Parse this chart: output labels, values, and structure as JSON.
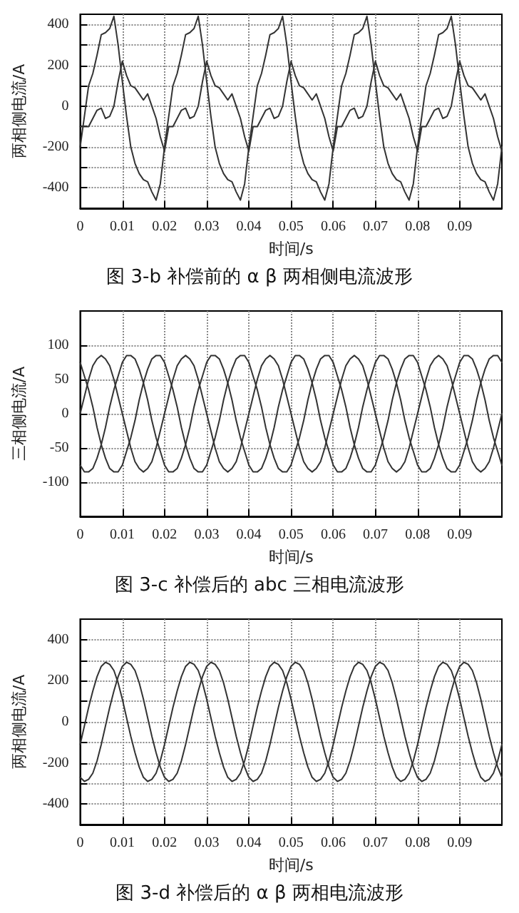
{
  "chart_data": [
    {
      "type": "line",
      "title": "图 3-b 补偿前的 α β 两相侧电流波形",
      "xlabel": "时间/s",
      "ylabel": "两相侧电流/A",
      "x": [
        0,
        0.001,
        0.002,
        0.003,
        0.004,
        0.005,
        0.006,
        0.007,
        0.008,
        0.009,
        0.01,
        0.011,
        0.012,
        0.013,
        0.014,
        0.015,
        0.016,
        0.017,
        0.018,
        0.019,
        0.02,
        0.021,
        0.022,
        0.023,
        0.024,
        0.025,
        0.026,
        0.027,
        0.028,
        0.029,
        0.03,
        0.031,
        0.032,
        0.033,
        0.034,
        0.035,
        0.036,
        0.037,
        0.038,
        0.039,
        0.04,
        0.041,
        0.042,
        0.043,
        0.044,
        0.045,
        0.046,
        0.047,
        0.048,
        0.049,
        0.05,
        0.051,
        0.052,
        0.053,
        0.054,
        0.055,
        0.056,
        0.057,
        0.058,
        0.059,
        0.06,
        0.061,
        0.062,
        0.063,
        0.064,
        0.065,
        0.066,
        0.067,
        0.068,
        0.069,
        0.07,
        0.071,
        0.072,
        0.073,
        0.074,
        0.075,
        0.076,
        0.077,
        0.078,
        0.079,
        0.08,
        0.081,
        0.082,
        0.083,
        0.084,
        0.085,
        0.086,
        0.087,
        0.088,
        0.089,
        0.09,
        0.091,
        0.092,
        0.093,
        0.094,
        0.095,
        0.096,
        0.097,
        0.098,
        0.099,
        0.1
      ],
      "series": [
        {
          "color": "#333333",
          "values": [
            -200,
            -50,
            100,
            160,
            250,
            350,
            360,
            380,
            440,
            300,
            120,
            -50,
            -200,
            -280,
            -330,
            -360,
            -370,
            -420,
            -460,
            -380,
            -200,
            -50,
            100,
            160,
            250,
            350,
            360,
            380,
            440,
            300,
            120,
            -50,
            -200,
            -280,
            -330,
            -360,
            -370,
            -420,
            -460,
            -380,
            -200,
            -50,
            100,
            160,
            250,
            350,
            360,
            380,
            440,
            300,
            120,
            -50,
            -200,
            -280,
            -330,
            -360,
            -370,
            -420,
            -460,
            -380,
            -200,
            -50,
            100,
            160,
            250,
            350,
            360,
            380,
            440,
            300,
            120,
            -50,
            -200,
            -280,
            -330,
            -360,
            -370,
            -420,
            -460,
            -380,
            -200,
            -50,
            100,
            160,
            250,
            350,
            360,
            380,
            440,
            300,
            120,
            -50,
            -200,
            -280,
            -330,
            -360,
            -370,
            -420,
            -460,
            -380,
            -200
          ]
        },
        {
          "color": "#333333",
          "values": [
            -100,
            -100,
            -100,
            -60,
            -20,
            -10,
            -60,
            -50,
            0,
            120,
            220,
            150,
            100,
            90,
            60,
            30,
            60,
            0,
            -60,
            -150,
            -220,
            -100,
            -100,
            -60,
            -20,
            -10,
            -60,
            -50,
            0,
            120,
            220,
            150,
            100,
            90,
            60,
            30,
            60,
            0,
            -60,
            -150,
            -220,
            -100,
            -100,
            -60,
            -20,
            -10,
            -60,
            -50,
            0,
            120,
            220,
            150,
            100,
            90,
            60,
            30,
            60,
            0,
            -60,
            -150,
            -220,
            -100,
            -100,
            -60,
            -20,
            -10,
            -60,
            -50,
            0,
            120,
            220,
            150,
            100,
            90,
            60,
            30,
            60,
            0,
            -60,
            -150,
            -220,
            -100,
            -100,
            -60,
            -20,
            -10,
            -60,
            -50,
            0,
            120,
            220,
            150,
            100,
            90,
            60,
            30,
            60,
            0,
            -60,
            -150,
            -220
          ]
        }
      ],
      "xlim": [
        0,
        0.1
      ],
      "xticks": [
        0,
        0.01,
        0.02,
        0.03,
        0.04,
        0.05,
        0.06,
        0.07,
        0.08,
        0.09
      ],
      "ylim": [
        -500,
        450
      ],
      "yticks": [
        -400,
        {
          "value": -300,
          "label": null
        },
        -200,
        {
          "value": -100,
          "label": null
        },
        0,
        {
          "value": 100,
          "label": null
        },
        200,
        {
          "value": 300,
          "label": null
        },
        400
      ],
      "grid": true,
      "marker": "none",
      "line_style": "solid"
    },
    {
      "type": "line",
      "title": "图 3-c 补偿后的 abc 三相电流波形",
      "xlabel": "时间/s",
      "ylabel": "三相侧电流/A",
      "x": [
        0,
        0.001,
        0.002,
        0.003,
        0.004,
        0.005,
        0.006,
        0.007,
        0.008,
        0.009,
        0.01,
        0.011,
        0.012,
        0.013,
        0.014,
        0.015,
        0.016,
        0.017,
        0.018,
        0.019,
        0.02,
        0.021,
        0.022,
        0.023,
        0.024,
        0.025,
        0.026,
        0.027,
        0.028,
        0.029,
        0.03,
        0.031,
        0.032,
        0.033,
        0.034,
        0.035,
        0.036,
        0.037,
        0.038,
        0.039,
        0.04,
        0.041,
        0.042,
        0.043,
        0.044,
        0.045,
        0.046,
        0.047,
        0.048,
        0.049,
        0.05,
        0.051,
        0.052,
        0.053,
        0.054,
        0.055,
        0.056,
        0.057,
        0.058,
        0.059,
        0.06,
        0.061,
        0.062,
        0.063,
        0.064,
        0.065,
        0.066,
        0.067,
        0.068,
        0.069,
        0.07,
        0.071,
        0.072,
        0.073,
        0.074,
        0.075,
        0.076,
        0.077,
        0.078,
        0.079,
        0.08,
        0.081,
        0.082,
        0.083,
        0.084,
        0.085,
        0.086,
        0.087,
        0.088,
        0.089,
        0.09,
        0.091,
        0.092,
        0.093,
        0.094,
        0.095,
        0.096,
        0.097,
        0.098,
        0.099,
        0.1
      ],
      "series": [
        {
          "color": "#333333",
          "values": [
            0,
            25,
            50,
            70,
            80,
            85,
            80,
            70,
            50,
            25,
            0,
            -25,
            -50,
            -70,
            -80,
            -85,
            -80,
            -70,
            -50,
            -25,
            0,
            25,
            50,
            70,
            80,
            85,
            80,
            70,
            50,
            25,
            0,
            -25,
            -50,
            -70,
            -80,
            -85,
            -80,
            -70,
            -50,
            -25,
            0,
            25,
            50,
            70,
            80,
            85,
            80,
            70,
            50,
            25,
            0,
            -25,
            -50,
            -70,
            -80,
            -85,
            -80,
            -70,
            -50,
            -25,
            0,
            25,
            50,
            70,
            80,
            85,
            80,
            70,
            50,
            25,
            0,
            -25,
            -50,
            -70,
            -80,
            -85,
            -80,
            -70,
            -50,
            -25,
            0,
            25,
            50,
            70,
            80,
            85,
            80,
            70,
            50,
            25,
            0,
            -25,
            -50,
            -70,
            -80,
            -85,
            -80,
            -70,
            -50,
            -25,
            0
          ]
        },
        {
          "color": "#333333",
          "values": [
            -75,
            -85,
            -85,
            -80,
            -65,
            -45,
            -20,
            10,
            35,
            55,
            75,
            85,
            85,
            80,
            65,
            45,
            20,
            -10,
            -35,
            -55,
            -75,
            -85,
            -85,
            -80,
            -65,
            -45,
            -20,
            10,
            35,
            55,
            75,
            85,
            85,
            80,
            65,
            45,
            20,
            -10,
            -35,
            -55,
            -75,
            -85,
            -85,
            -80,
            -65,
            -45,
            -20,
            10,
            35,
            55,
            75,
            85,
            85,
            80,
            65,
            45,
            20,
            -10,
            -35,
            -55,
            -75,
            -85,
            -85,
            -80,
            -65,
            -45,
            -20,
            10,
            35,
            55,
            75,
            85,
            85,
            80,
            65,
            45,
            20,
            -10,
            -35,
            -55,
            -75,
            -85,
            -85,
            -80,
            -65,
            -45,
            -20,
            10,
            35,
            55,
            75,
            85,
            85,
            80,
            65,
            45,
            20,
            -10,
            -35,
            -55,
            -75
          ]
        },
        {
          "color": "#333333",
          "values": [
            75,
            55,
            35,
            10,
            -20,
            -45,
            -65,
            -80,
            -85,
            -85,
            -75,
            -55,
            -35,
            -10,
            20,
            45,
            65,
            80,
            85,
            85,
            75,
            55,
            35,
            10,
            -20,
            -45,
            -65,
            -80,
            -85,
            -85,
            -75,
            -55,
            -35,
            -10,
            20,
            45,
            65,
            80,
            85,
            85,
            75,
            55,
            35,
            10,
            -20,
            -45,
            -65,
            -80,
            -85,
            -85,
            -75,
            -55,
            -35,
            -10,
            20,
            45,
            65,
            80,
            85,
            85,
            75,
            55,
            35,
            10,
            -20,
            -45,
            -65,
            -80,
            -85,
            -85,
            -75,
            -55,
            -35,
            -10,
            20,
            45,
            65,
            80,
            85,
            85,
            75,
            55,
            35,
            10,
            -20,
            -45,
            -65,
            -80,
            -85,
            -85,
            -75,
            -55,
            -35,
            -10,
            20,
            45,
            65,
            80,
            85,
            85,
            75
          ]
        }
      ],
      "xlim": [
        0,
        0.1
      ],
      "xticks": [
        0,
        0.01,
        0.02,
        0.03,
        0.04,
        0.05,
        0.06,
        0.07,
        0.08,
        0.09
      ],
      "ylim": [
        -150,
        150
      ],
      "yticks": [
        -100,
        -50,
        0,
        50,
        100
      ],
      "grid": true,
      "marker": "none",
      "line_style": "solid"
    },
    {
      "type": "line",
      "title": "图 3-d 补偿后的 α β 两相电流波形",
      "xlabel": "时间/s",
      "ylabel": "两相侧电流/A",
      "x": [
        0,
        0.001,
        0.002,
        0.003,
        0.004,
        0.005,
        0.006,
        0.007,
        0.008,
        0.009,
        0.01,
        0.011,
        0.012,
        0.013,
        0.014,
        0.015,
        0.016,
        0.017,
        0.018,
        0.019,
        0.02,
        0.021,
        0.022,
        0.023,
        0.024,
        0.025,
        0.026,
        0.027,
        0.028,
        0.029,
        0.03,
        0.031,
        0.032,
        0.033,
        0.034,
        0.035,
        0.036,
        0.037,
        0.038,
        0.039,
        0.04,
        0.041,
        0.042,
        0.043,
        0.044,
        0.045,
        0.046,
        0.047,
        0.048,
        0.049,
        0.05,
        0.051,
        0.052,
        0.053,
        0.054,
        0.055,
        0.056,
        0.057,
        0.058,
        0.059,
        0.06,
        0.061,
        0.062,
        0.063,
        0.064,
        0.065,
        0.066,
        0.067,
        0.068,
        0.069,
        0.07,
        0.071,
        0.072,
        0.073,
        0.074,
        0.075,
        0.076,
        0.077,
        0.078,
        0.079,
        0.08,
        0.081,
        0.082,
        0.083,
        0.084,
        0.085,
        0.086,
        0.087,
        0.088,
        0.089,
        0.09,
        0.091,
        0.092,
        0.093,
        0.094,
        0.095,
        0.096,
        0.097,
        0.098,
        0.099,
        0.1
      ],
      "series": [
        {
          "color": "#333333",
          "values": [
            -110,
            -20,
            70,
            150,
            220,
            270,
            290,
            280,
            250,
            190,
            110,
            20,
            -70,
            -150,
            -220,
            -270,
            -290,
            -280,
            -250,
            -190,
            -110,
            -20,
            70,
            150,
            220,
            270,
            290,
            280,
            250,
            190,
            110,
            20,
            -70,
            -150,
            -220,
            -270,
            -290,
            -280,
            -250,
            -190,
            -110,
            -20,
            70,
            150,
            220,
            270,
            290,
            280,
            250,
            190,
            110,
            20,
            -70,
            -150,
            -220,
            -270,
            -290,
            -280,
            -250,
            -190,
            -110,
            -20,
            70,
            150,
            220,
            270,
            290,
            280,
            250,
            190,
            110,
            20,
            -70,
            -150,
            -220,
            -270,
            -290,
            -280,
            -250,
            -190,
            -110,
            -20,
            70,
            150,
            220,
            270,
            290,
            280,
            250,
            190,
            110,
            20,
            -70,
            -150,
            -220,
            -270,
            -290,
            -280,
            -250,
            -190,
            -110
          ]
        },
        {
          "color": "#333333",
          "values": [
            -270,
            -290,
            -280,
            -250,
            -190,
            -110,
            -20,
            70,
            150,
            220,
            270,
            290,
            280,
            250,
            190,
            110,
            20,
            -70,
            -150,
            -220,
            -270,
            -290,
            -280,
            -250,
            -190,
            -110,
            -20,
            70,
            150,
            220,
            270,
            290,
            280,
            250,
            190,
            110,
            20,
            -70,
            -150,
            -220,
            -270,
            -290,
            -280,
            -250,
            -190,
            -110,
            -20,
            70,
            150,
            220,
            270,
            290,
            280,
            250,
            190,
            110,
            20,
            -70,
            -150,
            -220,
            -270,
            -290,
            -280,
            -250,
            -190,
            -110,
            -20,
            70,
            150,
            220,
            270,
            290,
            280,
            250,
            190,
            110,
            20,
            -70,
            -150,
            -220,
            -270,
            -290,
            -280,
            -250,
            -190,
            -110,
            -20,
            70,
            150,
            220,
            270,
            290,
            280,
            250,
            190,
            110,
            20,
            -70,
            -150,
            -220,
            -270
          ]
        }
      ],
      "xlim": [
        0,
        0.1
      ],
      "xticks": [
        0,
        0.01,
        0.02,
        0.03,
        0.04,
        0.05,
        0.06,
        0.07,
        0.08,
        0.09
      ],
      "ylim": [
        -500,
        500
      ],
      "yticks": [
        -400,
        {
          "value": -300,
          "label": null
        },
        -200,
        {
          "value": -100,
          "label": null
        },
        0,
        {
          "value": 100,
          "label": null
        },
        200,
        {
          "value": 300,
          "label": null
        },
        400
      ],
      "grid": true,
      "marker": "none",
      "line_style": "solid"
    }
  ]
}
